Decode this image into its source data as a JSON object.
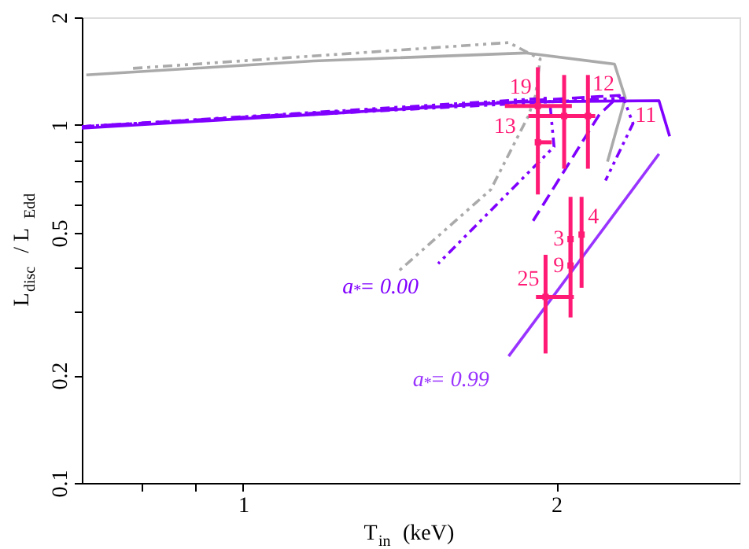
{
  "chart_data": {
    "type": "line",
    "xlabel": "T$_{in}$ (keV)",
    "ylabel": "L$_{disc}$ / L$_{Edd}$",
    "log": "xy",
    "xlim": [
      0.7,
      3
    ],
    "ylim": [
      0.1,
      2
    ],
    "xticks": [
      {
        "value": 0.8,
        "label": null
      },
      {
        "value": 0.9,
        "label": null
      },
      1,
      2
    ],
    "yticks": [
      0.1,
      0.2,
      {
        "value": 0.3,
        "label": null
      },
      {
        "value": 0.4,
        "label": null
      },
      0.5,
      {
        "value": 0.6,
        "label": null
      },
      {
        "value": 0.7,
        "label": null
      },
      {
        "value": 0.8,
        "label": null
      },
      {
        "value": 0.9,
        "label": null
      },
      1,
      2
    ],
    "grid": false,
    "series": [
      {
        "color": "#aaaaaa",
        "line_style": "solid",
        "x": [
          0.707,
          1.169,
          1.867,
          2.275,
          2.33,
          2.24
        ],
        "values": [
          1.38,
          1.51,
          1.59,
          1.48,
          1.19,
          0.79
        ]
      },
      {
        "color": "#aaaaaa",
        "line_style": "dotted",
        "x": [
          0.784,
          1.8,
          1.93,
          1.91,
          1.88,
          1.73,
          1.41
        ],
        "values": [
          1.44,
          1.7,
          1.53,
          1.21,
          1.06,
          0.66,
          0.39
        ]
      },
      {
        "color": "#8000ff",
        "line_style": "solid",
        "x": [
          0.7,
          1.169,
          1.835,
          2.51,
          2.57
        ],
        "values": [
          0.98,
          1.07,
          1.16,
          1.17,
          0.93
        ]
      },
      {
        "color": "#8000ff",
        "line_style": "dashed",
        "x": [
          0.7,
          2.3,
          2.2,
          1.9
        ],
        "values": [
          0.99,
          1.21,
          1.07,
          0.54
        ]
      },
      {
        "color": "#8000ff",
        "line_style": "dotted",
        "x": [
          0.7,
          1.97,
          1.99,
          1.54
        ],
        "values": [
          0.99,
          1.19,
          0.87,
          0.41
        ]
      },
      {
        "color": "#8000ff",
        "line_style": "dotted",
        "x": [
          0.7,
          2.32,
          2.37,
          2.23
        ],
        "values": [
          0.99,
          1.19,
          1.01,
          0.7
        ]
      },
      {
        "color": "#9933ff",
        "line_style": "solid",
        "x": [
          2.51,
          1.8
        ],
        "values": [
          0.83,
          0.226
        ]
      },
      {
        "type": "scatter",
        "color": "#ff1a75",
        "marker": "square",
        "x": [
          1.92,
          2.035,
          2.145,
          1.92,
          2.064,
          2.115,
          2.064,
          1.953
        ],
        "values": [
          1.13,
          1.06,
          1.06,
          0.895,
          0.48,
          0.494,
          0.405,
          0.331
        ],
        "errors": [
          [
            0.64,
            1.45
          ],
          [
            0.755,
            1.38
          ],
          [
            0.755,
            1.38
          ],
          null,
          [
            0.405,
            0.63
          ],
          [
            0.351,
            0.63
          ],
          [
            0.29,
            0.48
          ],
          [
            0.23,
            0.434
          ]
        ],
        "xerrors": [
          [
            1.785,
            2.07
          ],
          [
            1.88,
            2.15
          ],
          [
            2.035,
            2.18
          ],
          [
            1.91,
            1.98
          ],
          null,
          null,
          null,
          [
            1.912,
            2.079
          ]
        ]
      }
    ],
    "annotations": [
      {
        "text": "19",
        "x": 1.92,
        "y": 1.13
      },
      {
        "text": "12",
        "x": 2.035,
        "y": 1.06
      },
      {
        "text": "11",
        "x": 2.145,
        "y": 1.06
      },
      {
        "text": "13",
        "x": 1.92,
        "y": 0.895
      },
      {
        "text": "3",
        "x": 2.064,
        "y": 0.48
      },
      {
        "text": "4",
        "x": 2.115,
        "y": 0.494
      },
      {
        "text": "9",
        "x": 2.064,
        "y": 0.405
      },
      {
        "text": "25",
        "x": 1.953,
        "y": 0.331
      },
      {
        "text": "a$_{*}$= 0.00",
        "x": 1.54,
        "y": 0.41
      },
      {
        "text": "a$_{*}$= 0.99",
        "x": 1.8,
        "y": 0.226
      }
    ]
  }
}
